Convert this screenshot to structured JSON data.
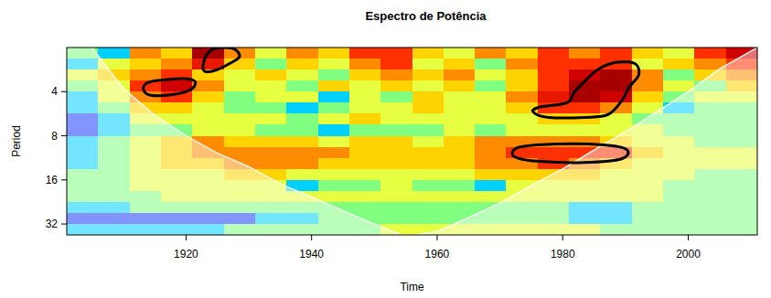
{
  "chart_data": {
    "type": "heatmap",
    "title": "Espectro de Potência",
    "x_label": "Time",
    "y_label": "Period",
    "xlim": [
      1901,
      2011
    ],
    "ylim": [
      2,
      38
    ],
    "xticks": [
      1920,
      1940,
      1960,
      1980,
      2000
    ],
    "yticks": [
      4,
      8,
      16,
      32
    ],
    "log": "y",
    "zlim": [
      0,
      10
    ],
    "cells": {
      "x_edges": [
        1901,
        1906,
        1911,
        1916,
        1921,
        1926,
        1931,
        1936,
        1941,
        1946,
        1951,
        1956,
        1961,
        1966,
        1971,
        1976,
        1981,
        1986,
        1991,
        1996,
        2001,
        2006,
        2011
      ],
      "y_edges": [
        2,
        2.38,
        2.83,
        3.36,
        4,
        4.76,
        5.66,
        6.73,
        8,
        9.51,
        11.31,
        13.45,
        16,
        19.03,
        22.63,
        26.91,
        32,
        38.05
      ],
      "values": [
        [
          4,
          3,
          7,
          6,
          9.5,
          7,
          5,
          7,
          6,
          8,
          8,
          6,
          5,
          7,
          6,
          8,
          7,
          8,
          6,
          5,
          8,
          9
        ],
        [
          3,
          5,
          6,
          7,
          8.5,
          6,
          4,
          6,
          5,
          7,
          8,
          5,
          6,
          4,
          7,
          8,
          8,
          8,
          5,
          6,
          7,
          8
        ],
        [
          5,
          6,
          7,
          8,
          6,
          5,
          6,
          5,
          4,
          6,
          7,
          6,
          7,
          5,
          6,
          8,
          9,
          9.5,
          7,
          4,
          6,
          7
        ],
        [
          4,
          5,
          8,
          9,
          7,
          5,
          5,
          4,
          6,
          5,
          6,
          5,
          6,
          4,
          6,
          8,
          9.5,
          9.5,
          7,
          5,
          4,
          6
        ],
        [
          3,
          5,
          7,
          8,
          6,
          4,
          5,
          5,
          3,
          5,
          4,
          6,
          5,
          5,
          7,
          8.5,
          9.5,
          9,
          6,
          4,
          5,
          5
        ],
        [
          3,
          4,
          6,
          6,
          5,
          4,
          4,
          3,
          4,
          5,
          5,
          6,
          5,
          5,
          6,
          8,
          8,
          7,
          5,
          3,
          4,
          4
        ],
        [
          2,
          3,
          5,
          5,
          5,
          5,
          5,
          4,
          5,
          6,
          5,
          5,
          5,
          5,
          5,
          6,
          6,
          5,
          4,
          4,
          4,
          4
        ],
        [
          2,
          3,
          4,
          4,
          5,
          5,
          4,
          4,
          3,
          4,
          4,
          4,
          5,
          4,
          5,
          5,
          5,
          5,
          5,
          4,
          4,
          4
        ],
        [
          3,
          4,
          5,
          6,
          7,
          6,
          6,
          6,
          5,
          6,
          6,
          5,
          6,
          7,
          7,
          7,
          7,
          6,
          5,
          5,
          4,
          4
        ],
        [
          3,
          4,
          5,
          6,
          7,
          7,
          7,
          7,
          7,
          6,
          6,
          6,
          6,
          7,
          8,
          8,
          8,
          8,
          6,
          5,
          5,
          5
        ],
        [
          3,
          4,
          5,
          6,
          6,
          7,
          7,
          7,
          6,
          6,
          6,
          6,
          6,
          7,
          7,
          8,
          7,
          6,
          5,
          5,
          5,
          5
        ],
        [
          4,
          4,
          5,
          5,
          5,
          6,
          6,
          5,
          5,
          5,
          5,
          5,
          5,
          6,
          6,
          6,
          6,
          5,
          5,
          5,
          4,
          4
        ],
        [
          4,
          4,
          5,
          5,
          5,
          5,
          5,
          3,
          4,
          4,
          5,
          4,
          4,
          3,
          5,
          5,
          5,
          5,
          5,
          4,
          4,
          4
        ],
        [
          4,
          4,
          4,
          5,
          5,
          5,
          5,
          5,
          5,
          5,
          5,
          5,
          5,
          5,
          5,
          5,
          5,
          5,
          5,
          4,
          4,
          4
        ],
        [
          3,
          3,
          4,
          4,
          4,
          4,
          4,
          4,
          4,
          4,
          4,
          4,
          4,
          4,
          4,
          4,
          3,
          3,
          4,
          4,
          4,
          4
        ],
        [
          2,
          2,
          2,
          2,
          2,
          2,
          3,
          3,
          4,
          4,
          4,
          4,
          4,
          4,
          4,
          4,
          3,
          3,
          4,
          4,
          4,
          4
        ],
        [
          3,
          3,
          3,
          3,
          3,
          4,
          4,
          4,
          4,
          4,
          5,
          5,
          5,
          5,
          5,
          5,
          5,
          4,
          4,
          4,
          4,
          4
        ]
      ]
    },
    "coi": {
      "x": [
        1905,
        1910,
        1915,
        1920,
        1925,
        1930,
        1935,
        1940,
        1945,
        1950,
        1955,
        1960,
        1965,
        1970,
        1975,
        1980,
        1985,
        1990,
        1995,
        2000,
        2005,
        2011
      ],
      "values": [
        2,
        3.8,
        5.8,
        8,
        10.5,
        13,
        17,
        21,
        26,
        32,
        39,
        36,
        29,
        23,
        17.5,
        13.5,
        10,
        7.5,
        5.5,
        4,
        2.8,
        2
      ]
    },
    "contours": [
      {
        "x": [
          1913.2,
          1914.0,
          1916.6,
          1920.2,
          1921.5,
          1920.7,
          1918.0,
          1914.4
        ],
        "y": [
          3.83,
          3.46,
          3.32,
          3.27,
          3.46,
          3.89,
          4.18,
          4.24
        ]
      },
      {
        "x": [
          1922.7,
          1923.3,
          1924.6,
          1927.5,
          1928.5,
          1926.8,
          1924.6,
          1923.0
        ],
        "y": [
          2.67,
          2.24,
          2.03,
          2.03,
          2.31,
          2.59,
          2.87,
          2.91
        ]
      },
      {
        "x": [
          1975.3,
          1976.3,
          1980.7,
          1981.9,
          1983.6,
          1985.8,
          1988.7,
          1991.6,
          1992.1,
          1990.6,
          1989.4,
          1987.2,
          1983.6,
          1977.8
        ],
        "y": [
          5.5,
          5.11,
          4.76,
          4.0,
          3.37,
          2.79,
          2.52,
          2.59,
          3.08,
          3.72,
          4.62,
          5.74,
          5.99,
          5.99
        ]
      },
      {
        "x": [
          1972.0,
          1973.4,
          1979.2,
          1986.5,
          1990.2,
          1989.4,
          1983.6,
          1976.3,
          1972.7
        ],
        "y": [
          10.37,
          9.51,
          9.11,
          9.24,
          9.93,
          11.48,
          12.16,
          11.98,
          11.31
        ]
      }
    ]
  }
}
